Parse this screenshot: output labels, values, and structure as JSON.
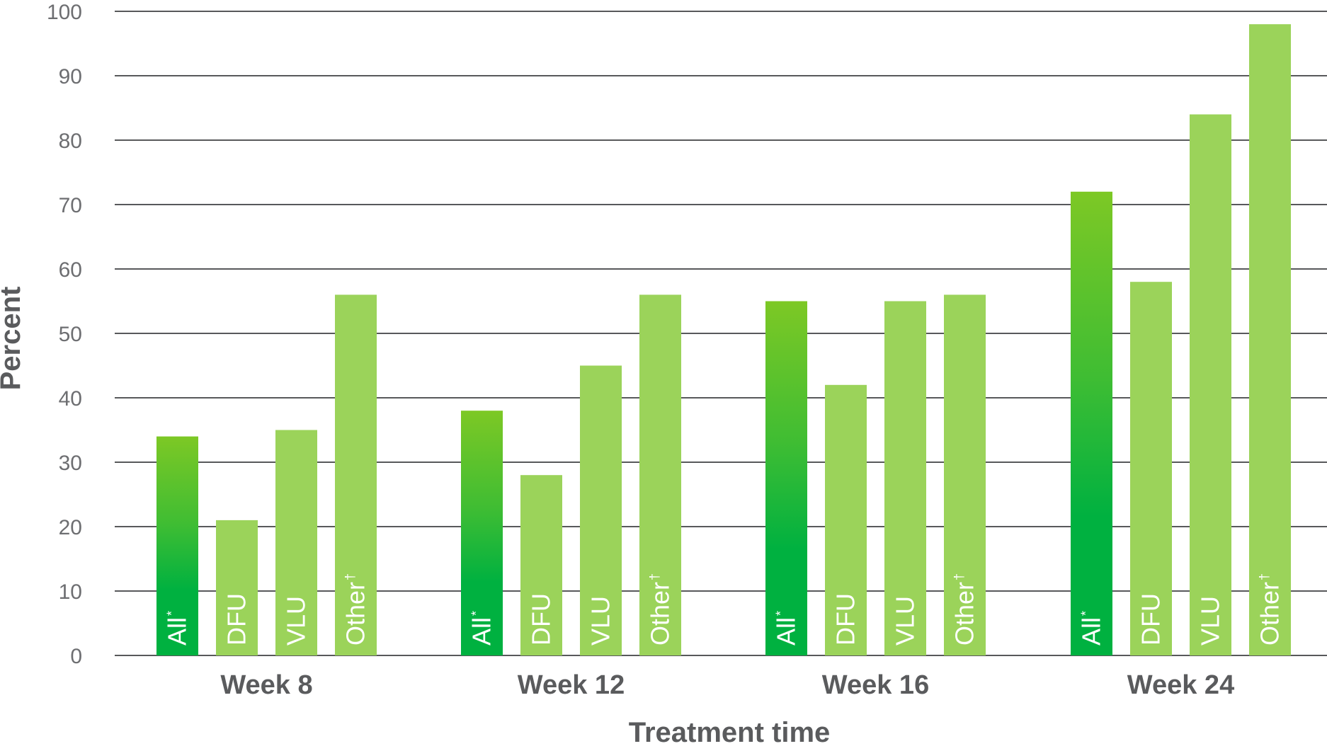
{
  "chart_data": {
    "type": "bar",
    "title": "",
    "xlabel": "Treatment time",
    "ylabel": "Percent",
    "ylim": [
      0,
      100
    ],
    "yticks": [
      0,
      10,
      20,
      30,
      40,
      50,
      60,
      70,
      80,
      90,
      100
    ],
    "grid": true,
    "categories": [
      "Week 8",
      "Week 12",
      "Week 16",
      "Week 24"
    ],
    "series": [
      {
        "name": "All",
        "marker": "*",
        "color": "#00b140",
        "values": [
          34,
          38,
          55,
          72
        ]
      },
      {
        "name": "DFU",
        "marker": "",
        "color": "#9bd35a",
        "values": [
          21,
          28,
          42,
          58
        ]
      },
      {
        "name": "VLU",
        "marker": "",
        "color": "#9bd35a",
        "values": [
          35,
          45,
          55,
          84
        ]
      },
      {
        "name": "Other",
        "marker": "†",
        "color": "#9bd35a",
        "values": [
          56,
          56,
          56,
          98
        ]
      }
    ],
    "gradient_top_color": "#7dc825"
  }
}
